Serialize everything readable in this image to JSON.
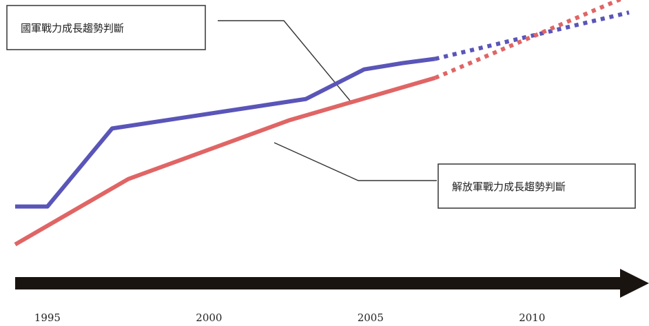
{
  "chart_data": {
    "type": "line",
    "title": "",
    "xlabel": "",
    "ylabel": "",
    "x_ticks": [
      "1995",
      "2000",
      "2005",
      "2010"
    ],
    "xlim": [
      1994,
      2013
    ],
    "ylim": [
      0,
      100
    ],
    "grid": false,
    "series": [
      {
        "name": "國軍戰力成長趨勢判斷",
        "color": "#5a55b8",
        "points": [
          [
            1994.0,
            23
          ],
          [
            1995.0,
            23
          ],
          [
            1997.0,
            60
          ],
          [
            2003.0,
            74
          ],
          [
            2004.8,
            88
          ],
          [
            2006.0,
            91
          ],
          [
            2007.0,
            93
          ]
        ],
        "projection": [
          [
            2007.0,
            93
          ],
          [
            2013.0,
            115
          ]
        ]
      },
      {
        "name": "解放軍戰力成長趨勢判斷",
        "color": "#e06565",
        "points": [
          [
            1994.0,
            5
          ],
          [
            1997.5,
            36
          ],
          [
            2002.5,
            64
          ],
          [
            2007.0,
            84
          ]
        ],
        "projection": [
          [
            2007.0,
            84
          ],
          [
            2013.0,
            123
          ]
        ]
      }
    ],
    "annotations": [
      {
        "text": "國軍戰力成長趨勢判斷",
        "series": 0
      },
      {
        "text": "解放軍戰力成長趨勢判斷",
        "series": 1
      }
    ]
  }
}
